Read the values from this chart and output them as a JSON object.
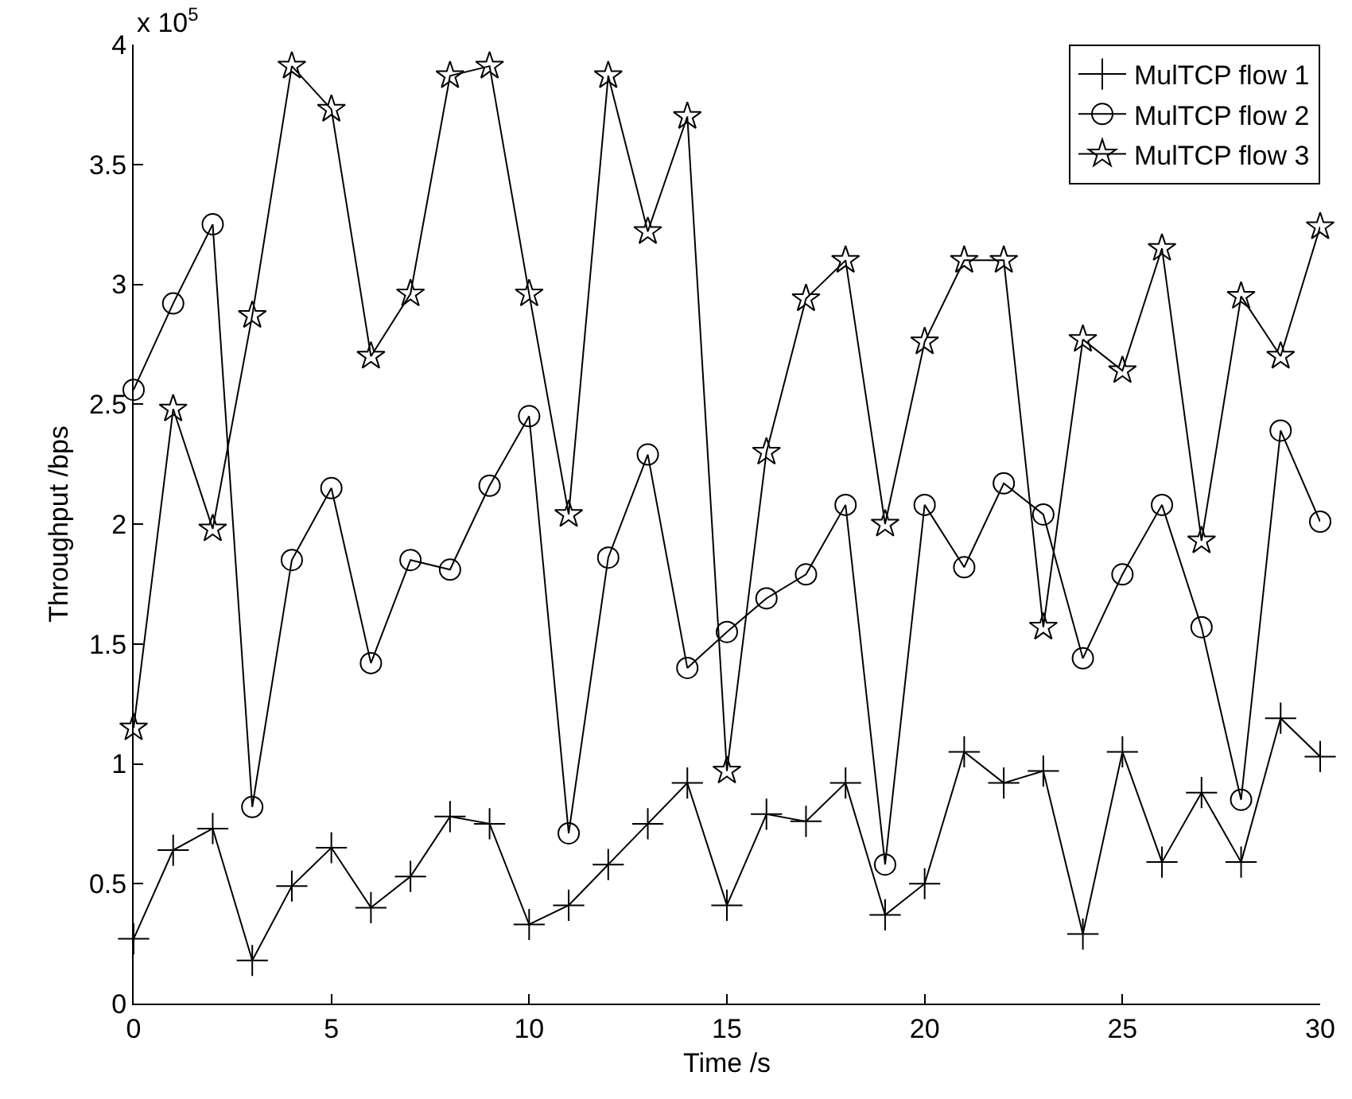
{
  "chart_data": {
    "type": "line",
    "xlabel": "Time /s",
    "ylabel": "Throughput /bps",
    "annotations": [
      "x 10$^{5}$"
    ],
    "x": [
      0,
      1,
      2,
      3,
      4,
      5,
      6,
      7,
      8,
      9,
      10,
      11,
      12,
      13,
      14,
      15,
      16,
      17,
      18,
      19,
      20,
      21,
      22,
      23,
      24,
      25,
      26,
      27,
      28,
      29,
      30
    ],
    "series": [
      {
        "name": "MulTCP flow 1",
        "color": "#000000",
        "marker": "cross",
        "values": [
          0.27,
          0.64,
          0.73,
          0.18,
          0.49,
          0.65,
          0.4,
          0.53,
          0.78,
          0.75,
          0.33,
          0.41,
          0.58,
          0.75,
          0.92,
          0.41,
          0.79,
          0.76,
          0.92,
          0.37,
          0.5,
          1.05,
          0.92,
          0.97,
          0.29,
          1.05,
          0.59,
          0.88,
          0.59,
          1.19,
          1.03
        ]
      },
      {
        "name": "MulTCP flow 2",
        "color": "#000000",
        "marker": "circle",
        "values": [
          2.56,
          2.92,
          3.25,
          0.82,
          1.85,
          2.15,
          1.42,
          1.85,
          1.81,
          2.16,
          2.45,
          0.71,
          1.86,
          2.29,
          1.4,
          1.55,
          1.69,
          1.79,
          2.08,
          0.58,
          2.08,
          1.82,
          2.17,
          2.04,
          1.44,
          1.79,
          2.08,
          1.57,
          0.85,
          2.39,
          2.01
        ]
      },
      {
        "name": "MulTCP flow 3",
        "color": "#000000",
        "marker": "star",
        "values": [
          1.15,
          2.48,
          1.98,
          2.87,
          3.91,
          3.73,
          2.7,
          2.96,
          3.87,
          3.91,
          2.96,
          2.04,
          3.87,
          3.22,
          3.7,
          0.97,
          2.3,
          2.94,
          3.1,
          2.0,
          2.76,
          3.1,
          3.1,
          1.57,
          2.77,
          2.64,
          3.15,
          1.93,
          2.95,
          2.7,
          3.24
        ]
      }
    ],
    "xlim": [
      0,
      30
    ],
    "xticks": [
      0,
      5,
      10,
      15,
      20,
      25,
      30
    ],
    "ylim": [
      0,
      4
    ],
    "yticks": [
      0,
      0.5,
      1,
      1.5,
      2,
      2.5,
      3,
      3.5,
      4
    ],
    "grid": false,
    "legend": "top right",
    "line_style": "solid"
  }
}
